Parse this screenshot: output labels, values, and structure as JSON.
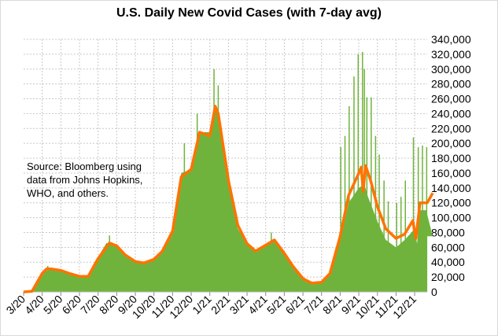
{
  "chart_data": {
    "type": "bar+line",
    "title": "U.S. Daily New Covid Cases (with 7-day avg)",
    "annotation": "Source:  Bloomberg using\ndata from Johns Hopkins,\nWHO, and others.",
    "xlabel": "",
    "ylabel": "",
    "ylim": [
      0,
      340000
    ],
    "yticks": [
      0,
      20000,
      40000,
      60000,
      80000,
      100000,
      120000,
      140000,
      160000,
      180000,
      200000,
      220000,
      240000,
      260000,
      280000,
      300000,
      320000,
      340000
    ],
    "ytick_labels": [
      "0",
      "20,000",
      "40,000",
      "60,000",
      "80,000",
      "100,000",
      "120,000",
      "140,000",
      "160,000",
      "180,000",
      "200,000",
      "220,000",
      "240,000",
      "260,000",
      "280,000",
      "300,000",
      "320,000",
      "340,000"
    ],
    "xtick_labels": [
      "3/20",
      "4/20",
      "5/20",
      "6/20",
      "7/20",
      "8/20",
      "9/20",
      "10/20",
      "11/20",
      "12/20",
      "1/21",
      "2/21",
      "3/21",
      "4/21",
      "5/21",
      "6/21",
      "7/21",
      "8/21",
      "9/21",
      "10/21",
      "11/21",
      "12/21"
    ],
    "y_axis_position": "right",
    "grid": true,
    "colors": {
      "daily": "#70b33c",
      "avg": "#ff7300",
      "grid": "#c8c8c8"
    },
    "series": [
      {
        "kind": "bars",
        "points": [
          [
            "2020-03-01",
            0
          ],
          [
            "2020-03-15",
            1500
          ],
          [
            "2020-04-01",
            27000
          ],
          [
            "2020-04-15",
            30000
          ],
          [
            "2020-05-01",
            29000
          ],
          [
            "2020-05-15",
            25000
          ],
          [
            "2020-06-01",
            21000
          ],
          [
            "2020-06-15",
            22000
          ],
          [
            "2020-07-01",
            47000
          ],
          [
            "2020-07-15",
            66000
          ],
          [
            "2020-08-01",
            63000
          ],
          [
            "2020-08-15",
            50000
          ],
          [
            "2020-09-01",
            41000
          ],
          [
            "2020-09-15",
            38000
          ],
          [
            "2020-10-01",
            44000
          ],
          [
            "2020-10-15",
            56000
          ],
          [
            "2020-11-01",
            85000
          ],
          [
            "2020-11-15",
            160000
          ],
          [
            "2020-12-01",
            165000
          ],
          [
            "2020-12-15",
            215000
          ],
          [
            "2021-01-01",
            215000
          ],
          [
            "2021-01-10",
            250000
          ],
          [
            "2021-01-15",
            235000
          ],
          [
            "2021-02-01",
            145000
          ],
          [
            "2021-02-15",
            85000
          ],
          [
            "2021-03-01",
            65000
          ],
          [
            "2021-03-15",
            55000
          ],
          [
            "2021-04-01",
            64000
          ],
          [
            "2021-04-15",
            70000
          ],
          [
            "2021-05-01",
            50000
          ],
          [
            "2021-05-15",
            33000
          ],
          [
            "2021-06-01",
            17000
          ],
          [
            "2021-06-15",
            11000
          ],
          [
            "2021-07-01",
            12000
          ],
          [
            "2021-07-15",
            25000
          ],
          [
            "2021-08-01",
            70000
          ],
          [
            "2021-08-15",
            120000
          ],
          [
            "2021-09-01",
            140000
          ],
          [
            "2021-09-10",
            145000
          ],
          [
            "2021-09-15",
            130000
          ],
          [
            "2021-10-01",
            95000
          ],
          [
            "2021-10-15",
            70000
          ],
          [
            "2021-11-01",
            60000
          ],
          [
            "2021-11-15",
            70000
          ],
          [
            "2021-12-01",
            85000
          ],
          [
            "2021-12-05",
            65000
          ],
          [
            "2021-12-10",
            110000
          ],
          [
            "2021-12-20",
            110000
          ],
          [
            "2021-12-31",
            75000
          ]
        ],
        "spikes": [
          [
            "2020-04-10",
            35000
          ],
          [
            "2020-07-20",
            76000
          ],
          [
            "2020-11-20",
            200000
          ],
          [
            "2020-12-11",
            240000
          ],
          [
            "2021-01-08",
            300000
          ],
          [
            "2021-01-15",
            278000
          ],
          [
            "2021-04-10",
            80000
          ],
          [
            "2021-08-02",
            195000
          ],
          [
            "2021-08-09",
            210000
          ],
          [
            "2021-08-16",
            250000
          ],
          [
            "2021-08-24",
            290000
          ],
          [
            "2021-08-31",
            320000
          ],
          [
            "2021-09-07",
            323000
          ],
          [
            "2021-09-10",
            300000
          ],
          [
            "2021-09-14",
            262000
          ],
          [
            "2021-09-21",
            262000
          ],
          [
            "2021-09-28",
            210000
          ],
          [
            "2021-10-04",
            185000
          ],
          [
            "2021-10-12",
            150000
          ],
          [
            "2021-10-19",
            122000
          ],
          [
            "2021-11-02",
            120000
          ],
          [
            "2021-11-09",
            128000
          ],
          [
            "2021-11-16",
            150000
          ],
          [
            "2021-11-29",
            208000
          ],
          [
            "2021-12-07",
            195000
          ],
          [
            "2021-12-14",
            197000
          ],
          [
            "2021-12-21",
            195000
          ]
        ]
      },
      {
        "kind": "line",
        "name": "7-day avg",
        "points": [
          [
            "2020-03-01",
            0
          ],
          [
            "2020-03-15",
            1000
          ],
          [
            "2020-04-01",
            25000
          ],
          [
            "2020-04-08",
            31000
          ],
          [
            "2020-04-15",
            31000
          ],
          [
            "2020-05-01",
            29000
          ],
          [
            "2020-05-15",
            25000
          ],
          [
            "2020-06-01",
            21000
          ],
          [
            "2020-06-15",
            21000
          ],
          [
            "2020-07-01",
            45000
          ],
          [
            "2020-07-20",
            66000
          ],
          [
            "2020-08-01",
            62000
          ],
          [
            "2020-08-15",
            50000
          ],
          [
            "2020-09-01",
            41000
          ],
          [
            "2020-09-15",
            39000
          ],
          [
            "2020-10-01",
            44000
          ],
          [
            "2020-10-15",
            55000
          ],
          [
            "2020-11-01",
            82000
          ],
          [
            "2020-11-15",
            155000
          ],
          [
            "2020-12-01",
            165000
          ],
          [
            "2020-12-15",
            215000
          ],
          [
            "2021-01-01",
            210000
          ],
          [
            "2021-01-10",
            250000
          ],
          [
            "2021-01-15",
            240000
          ],
          [
            "2021-02-01",
            150000
          ],
          [
            "2021-02-15",
            90000
          ],
          [
            "2021-03-01",
            65000
          ],
          [
            "2021-03-15",
            55000
          ],
          [
            "2021-04-01",
            63000
          ],
          [
            "2021-04-15",
            70000
          ],
          [
            "2021-05-01",
            52000
          ],
          [
            "2021-05-15",
            35000
          ],
          [
            "2021-06-01",
            18000
          ],
          [
            "2021-06-15",
            12000
          ],
          [
            "2021-07-01",
            13000
          ],
          [
            "2021-07-15",
            25000
          ],
          [
            "2021-08-01",
            75000
          ],
          [
            "2021-08-15",
            130000
          ],
          [
            "2021-09-01",
            160000
          ],
          [
            "2021-09-05",
            168000
          ],
          [
            "2021-09-08",
            135000
          ],
          [
            "2021-09-12",
            170000
          ],
          [
            "2021-09-20",
            150000
          ],
          [
            "2021-10-01",
            115000
          ],
          [
            "2021-10-15",
            85000
          ],
          [
            "2021-11-01",
            72000
          ],
          [
            "2021-11-15",
            78000
          ],
          [
            "2021-11-28",
            96000
          ],
          [
            "2021-12-03",
            72000
          ],
          [
            "2021-12-10",
            120000
          ],
          [
            "2021-12-22",
            120000
          ],
          [
            "2021-12-31",
            133000
          ]
        ]
      }
    ]
  }
}
